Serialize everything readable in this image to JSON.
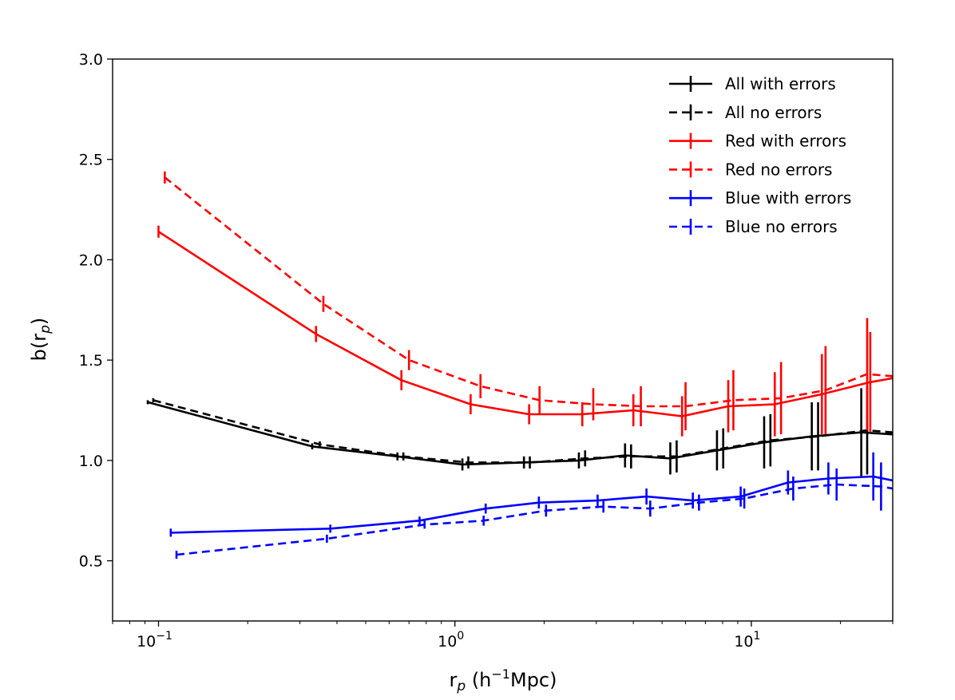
{
  "chart_data": {
    "type": "line",
    "title": "",
    "xlabel": {
      "main": "r",
      "sub": "p",
      "unit": "(h",
      "sup": "−1",
      "tail": "Mpc)"
    },
    "ylabel": {
      "main": "b(r",
      "sub": "p",
      "tail": ")"
    },
    "xscale": "log",
    "xlim": [
      0.07,
      30
    ],
    "ylim": [
      0.2,
      3.0
    ],
    "yticks": [
      0.5,
      1.0,
      1.5,
      2.0,
      2.5,
      3.0
    ],
    "ytick_labels": [
      "0.5",
      "1.0",
      "1.5",
      "2.0",
      "2.5",
      "3.0"
    ],
    "xticks": [
      {
        "value": 0.1,
        "base": "10",
        "exp": "−1"
      },
      {
        "value": 1,
        "base": "10",
        "exp": "0"
      },
      {
        "value": 10,
        "base": "10",
        "exp": "1"
      }
    ],
    "grid": false,
    "legend_position": "top-right",
    "series": [
      {
        "name": "All with errors",
        "color": "#000000",
        "dashed": false,
        "x": [
          0.092,
          0.33,
          0.64,
          1.06,
          1.71,
          2.62,
          3.75,
          5.33,
          7.66,
          11.05,
          16.0,
          23.5,
          30
        ],
        "y": [
          1.29,
          1.07,
          1.02,
          0.98,
          0.99,
          1.0,
          1.025,
          1.01,
          1.05,
          1.09,
          1.12,
          1.14,
          1.13
        ],
        "err": [
          0.01,
          0.015,
          0.02,
          0.03,
          0.03,
          0.04,
          0.06,
          0.08,
          0.1,
          0.13,
          0.17,
          0.22,
          0
        ]
      },
      {
        "name": "All no errors",
        "color": "#000000",
        "dashed": true,
        "x": [
          0.096,
          0.35,
          0.67,
          1.11,
          1.79,
          2.75,
          3.93,
          5.6,
          8.04,
          11.6,
          16.8,
          24.6,
          30
        ],
        "y": [
          1.3,
          1.08,
          1.02,
          0.99,
          0.99,
          1.01,
          1.02,
          1.02,
          1.06,
          1.1,
          1.12,
          1.15,
          1.14
        ],
        "err": [
          0.01,
          0.015,
          0.02,
          0.03,
          0.03,
          0.04,
          0.06,
          0.08,
          0.1,
          0.13,
          0.17,
          0.22,
          0
        ]
      },
      {
        "name": "Red with errors",
        "color": "#ff0000",
        "dashed": false,
        "x": [
          0.1,
          0.34,
          0.66,
          1.13,
          1.78,
          2.69,
          4.0,
          5.84,
          8.36,
          12.0,
          17.3,
          25.2,
          30
        ],
        "y": [
          2.14,
          1.63,
          1.4,
          1.28,
          1.23,
          1.23,
          1.25,
          1.22,
          1.27,
          1.28,
          1.33,
          1.39,
          1.41
        ],
        "err": [
          0.03,
          0.04,
          0.05,
          0.05,
          0.05,
          0.06,
          0.08,
          0.1,
          0.13,
          0.16,
          0.2,
          0.25,
          0
        ]
      },
      {
        "name": "Red no errors",
        "color": "#ff0000",
        "dashed": true,
        "x": [
          0.105,
          0.36,
          0.7,
          1.22,
          1.93,
          2.93,
          4.24,
          6.0,
          8.7,
          12.6,
          17.8,
          24.6,
          30
        ],
        "y": [
          2.41,
          1.78,
          1.5,
          1.37,
          1.3,
          1.28,
          1.27,
          1.27,
          1.3,
          1.31,
          1.35,
          1.43,
          1.42
        ],
        "err": [
          0.03,
          0.04,
          0.05,
          0.06,
          0.07,
          0.08,
          0.1,
          0.12,
          0.15,
          0.18,
          0.22,
          0.28,
          0
        ]
      },
      {
        "name": "Blue with errors",
        "color": "#0000ff",
        "dashed": false,
        "x": [
          0.11,
          0.38,
          0.76,
          1.27,
          1.92,
          3.03,
          4.43,
          6.35,
          9.21,
          13.3,
          18.2,
          25.8,
          30
        ],
        "y": [
          0.64,
          0.66,
          0.7,
          0.76,
          0.79,
          0.8,
          0.82,
          0.8,
          0.82,
          0.89,
          0.91,
          0.92,
          0.9
        ],
        "err": [
          0.02,
          0.02,
          0.02,
          0.025,
          0.03,
          0.03,
          0.04,
          0.04,
          0.05,
          0.06,
          0.08,
          0.12,
          0
        ]
      },
      {
        "name": "Blue no errors",
        "color": "#0000ff",
        "dashed": true,
        "x": [
          0.115,
          0.37,
          0.79,
          1.25,
          2.03,
          3.17,
          4.56,
          6.66,
          9.47,
          13.85,
          19.4,
          27.4,
          30
        ],
        "y": [
          0.53,
          0.61,
          0.68,
          0.7,
          0.75,
          0.77,
          0.76,
          0.79,
          0.81,
          0.86,
          0.88,
          0.87,
          0.86
        ],
        "err": [
          0.02,
          0.02,
          0.02,
          0.025,
          0.03,
          0.03,
          0.04,
          0.04,
          0.05,
          0.06,
          0.08,
          0.12,
          0
        ]
      }
    ]
  }
}
